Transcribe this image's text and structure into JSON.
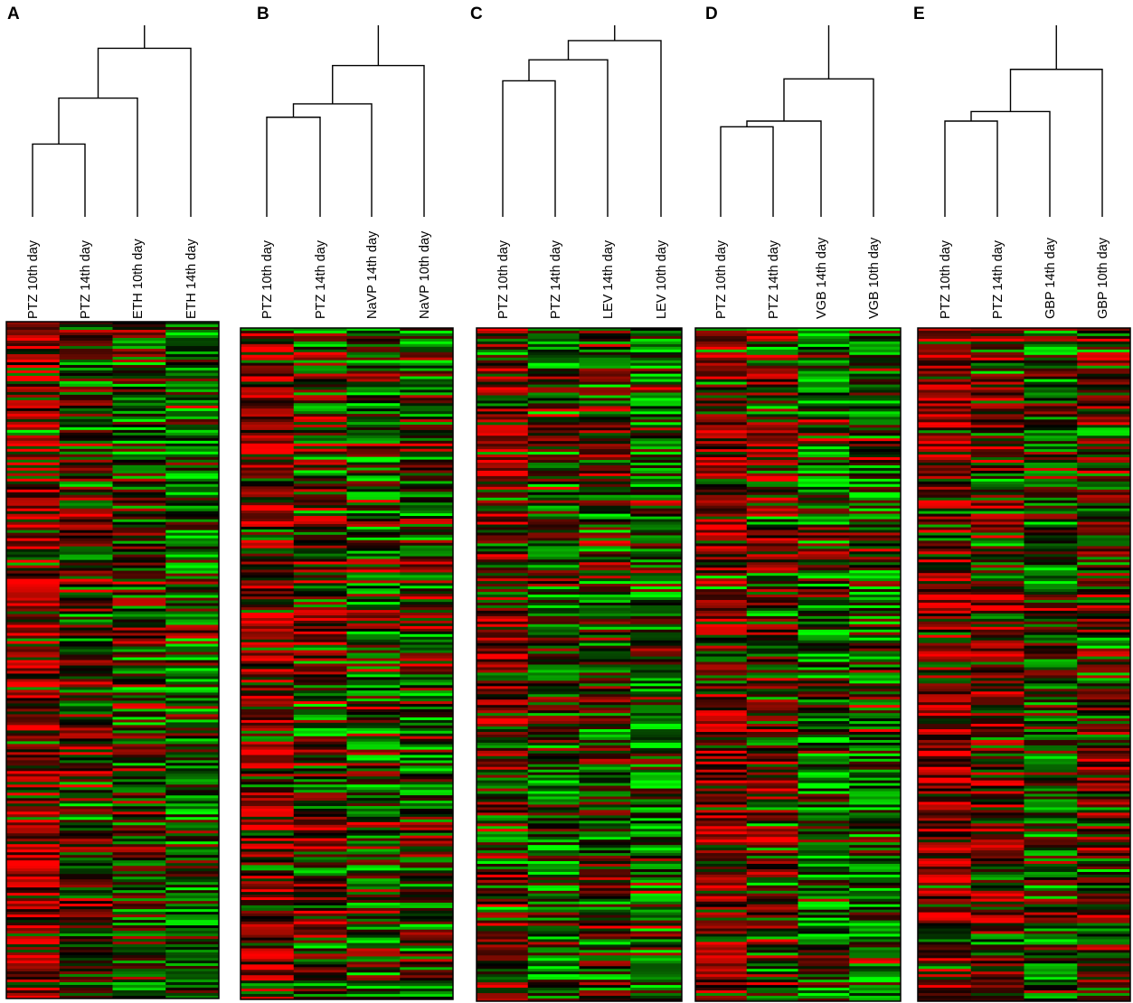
{
  "chart_data": [
    {
      "type": "heatmap",
      "panel": "A",
      "columns": [
        "PTZ 10th day",
        "PTZ 14th day",
        "ETH 10th day",
        "ETH 14th day"
      ],
      "dendrogram": {
        "merges": [
          [
            0,
            1
          ],
          [
            4,
            2
          ],
          [
            5,
            3
          ]
        ],
        "heights": [
          0.38,
          0.62,
          0.88
        ]
      },
      "color_scale": {
        "low": "#00ff00",
        "mid": "#000000",
        "high": "#ff0000"
      },
      "seed": 11,
      "bias": [
        0.45,
        0.05,
        -0.05,
        -0.2
      ]
    },
    {
      "type": "heatmap",
      "panel": "B",
      "columns": [
        "PTZ 10th day",
        "PTZ 14th day",
        "NaVP 14th day",
        "NaVP 10th day"
      ],
      "dendrogram": {
        "merges": [
          [
            0,
            1
          ],
          [
            4,
            2
          ],
          [
            5,
            3
          ]
        ],
        "heights": [
          0.52,
          0.59,
          0.79
        ]
      },
      "color_scale": {
        "low": "#00ff00",
        "mid": "#000000",
        "high": "#ff0000"
      },
      "seed": 23,
      "bias": [
        0.35,
        0.1,
        -0.1,
        -0.05
      ]
    },
    {
      "type": "heatmap",
      "panel": "C",
      "columns": [
        "PTZ 10th day",
        "PTZ 14th day",
        "LEV 14th day",
        "LEV 10th day"
      ],
      "dendrogram": {
        "merges": [
          [
            0,
            1
          ],
          [
            4,
            2
          ],
          [
            5,
            3
          ]
        ],
        "heights": [
          0.71,
          0.82,
          0.92
        ]
      },
      "color_scale": {
        "low": "#00ff00",
        "mid": "#000000",
        "high": "#ff0000"
      },
      "seed": 37,
      "bias": [
        0.2,
        -0.15,
        0.0,
        -0.2
      ]
    },
    {
      "type": "heatmap",
      "panel": "D",
      "columns": [
        "PTZ 10th day",
        "PTZ 14th day",
        "VGB 14th day",
        "VGB 10th day"
      ],
      "dendrogram": {
        "merges": [
          [
            0,
            1
          ],
          [
            4,
            2
          ],
          [
            5,
            3
          ]
        ],
        "heights": [
          0.47,
          0.5,
          0.72
        ]
      },
      "color_scale": {
        "low": "#00ff00",
        "mid": "#000000",
        "high": "#ff0000"
      },
      "seed": 51,
      "bias": [
        0.35,
        0.15,
        -0.3,
        -0.3
      ]
    },
    {
      "type": "heatmap",
      "panel": "E",
      "columns": [
        "PTZ 10th day",
        "PTZ 14th day",
        "GBP 14th day",
        "GBP 10th day"
      ],
      "dendrogram": {
        "merges": [
          [
            0,
            1
          ],
          [
            4,
            2
          ],
          [
            5,
            3
          ]
        ],
        "heights": [
          0.5,
          0.55,
          0.77
        ]
      },
      "color_scale": {
        "low": "#00ff00",
        "mid": "#000000",
        "high": "#ff0000"
      },
      "seed": 67,
      "bias": [
        0.4,
        0.2,
        -0.15,
        0.1
      ]
    }
  ]
}
